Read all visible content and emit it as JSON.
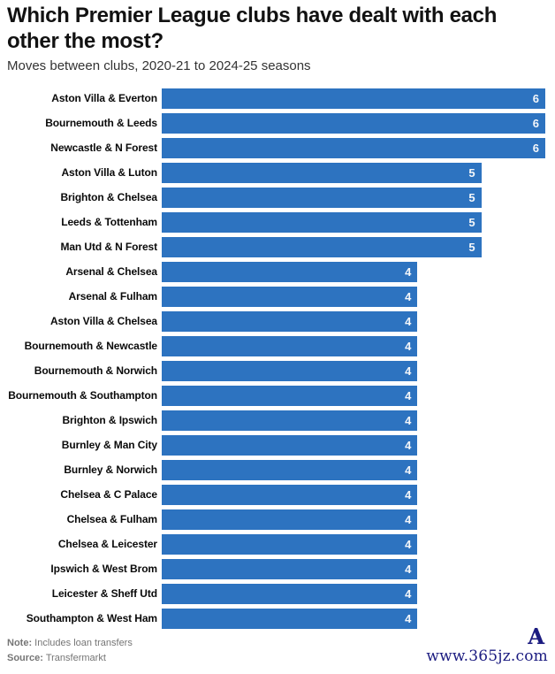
{
  "header": {
    "title": "Which Premier League clubs have dealt with each other the most?",
    "subtitle": "Moves between clubs, 2020-21 to 2024-25 seasons"
  },
  "chart_data": {
    "type": "bar",
    "orientation": "horizontal",
    "title": "Which Premier League clubs have dealt with each other the most?",
    "subtitle": "Moves between clubs, 2020-21 to 2024-25 seasons",
    "xlabel": "",
    "ylabel": "",
    "xlim": [
      0,
      6
    ],
    "grid": false,
    "value_labels_position": "inside-end",
    "bar_color": "#2d73c0",
    "value_label_color": "#f5f7fa",
    "categories": [
      "Aston Villa & Everton",
      "Bournemouth & Leeds",
      "Newcastle & N Forest",
      "Aston Villa & Luton",
      "Brighton & Chelsea",
      "Leeds & Tottenham",
      "Man Utd & N Forest",
      "Arsenal & Chelsea",
      "Arsenal & Fulham",
      "Aston Villa & Chelsea",
      "Bournemouth & Newcastle",
      "Bournemouth & Norwich",
      "Bournemouth & Southampton",
      "Brighton & Ipswich",
      "Burnley & Man City",
      "Burnley & Norwich",
      "Chelsea & C Palace",
      "Chelsea & Fulham",
      "Chelsea & Leicester",
      "Ipswich & West Brom",
      "Leicester & Sheff Utd",
      "Southampton & West Ham"
    ],
    "values": [
      6,
      6,
      6,
      5,
      5,
      5,
      5,
      4,
      4,
      4,
      4,
      4,
      4,
      4,
      4,
      4,
      4,
      4,
      4,
      4,
      4,
      4
    ]
  },
  "footer": {
    "note_label": "Note:",
    "note_text": "Includes loan transfers",
    "source_label": "Source:",
    "source_text": "Transfermarkt"
  },
  "watermark": {
    "logo_char": "A",
    "text": "www.365jz.com",
    "color": "#1b1b80"
  }
}
